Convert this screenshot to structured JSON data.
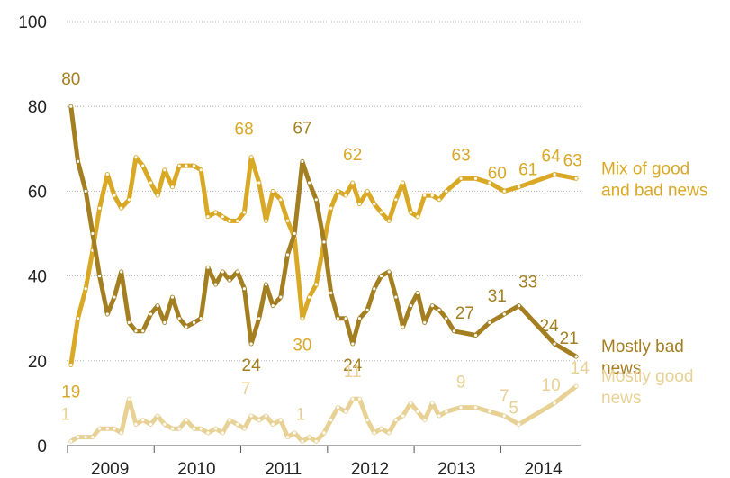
{
  "chart_data": {
    "type": "line",
    "title": "",
    "xlabel": "",
    "ylabel": "",
    "ylim": [
      0,
      100
    ],
    "yticks": [
      0,
      20,
      40,
      60,
      80,
      100
    ],
    "y_tick_labels": [
      "0",
      "20",
      "40",
      "60",
      "80",
      "100"
    ],
    "xlim": [
      2008.95,
      2014.88
    ],
    "x_tick_positions": [
      2009,
      2010,
      2011,
      2012,
      2013,
      2014
    ],
    "x_tick_labels": [
      "2009",
      "2010",
      "2011",
      "2012",
      "2013",
      "2014"
    ],
    "grid": "dotted horizontal lines at 20, 40, 60, 80, 100",
    "legend": "series labels at right end of each line",
    "series": [
      {
        "name": "Mix of good and bad news",
        "color": "#D9A824",
        "label_lines": [
          "Mix of good",
          "and bad news"
        ],
        "points": [
          [
            2009.0,
            19
          ],
          [
            2009.08,
            30
          ],
          [
            2009.17,
            37
          ],
          [
            2009.25,
            46
          ],
          [
            2009.33,
            56
          ],
          [
            2009.42,
            64
          ],
          [
            2009.5,
            59
          ],
          [
            2009.58,
            56
          ],
          [
            2009.67,
            58
          ],
          [
            2009.75,
            68
          ],
          [
            2009.83,
            66
          ],
          [
            2009.92,
            62
          ],
          [
            2010.0,
            59
          ],
          [
            2010.08,
            65
          ],
          [
            2010.17,
            61
          ],
          [
            2010.25,
            66
          ],
          [
            2010.33,
            66
          ],
          [
            2010.42,
            66
          ],
          [
            2010.5,
            65
          ],
          [
            2010.58,
            54
          ],
          [
            2010.67,
            55
          ],
          [
            2010.75,
            54
          ],
          [
            2010.83,
            53
          ],
          [
            2010.92,
            53
          ],
          [
            2011.0,
            55
          ],
          [
            2011.08,
            68
          ],
          [
            2011.17,
            62
          ],
          [
            2011.25,
            53
          ],
          [
            2011.33,
            60
          ],
          [
            2011.42,
            58
          ],
          [
            2011.5,
            53
          ],
          [
            2011.58,
            49
          ],
          [
            2011.67,
            30
          ],
          [
            2011.75,
            35
          ],
          [
            2011.83,
            38
          ],
          [
            2011.92,
            48
          ],
          [
            2012.0,
            56
          ],
          [
            2012.08,
            60
          ],
          [
            2012.17,
            59
          ],
          [
            2012.25,
            62
          ],
          [
            2012.33,
            57
          ],
          [
            2012.42,
            60
          ],
          [
            2012.5,
            57
          ],
          [
            2012.58,
            55
          ],
          [
            2012.67,
            53
          ],
          [
            2012.75,
            58
          ],
          [
            2012.83,
            62
          ],
          [
            2012.92,
            55
          ],
          [
            2013.0,
            54
          ],
          [
            2013.08,
            59
          ],
          [
            2013.17,
            59
          ],
          [
            2013.25,
            58
          ],
          [
            2013.33,
            60
          ],
          [
            2013.5,
            63
          ],
          [
            2013.67,
            63
          ],
          [
            2013.83,
            62
          ],
          [
            2014.0,
            60
          ],
          [
            2014.17,
            61
          ],
          [
            2014.58,
            64
          ],
          [
            2014.83,
            63
          ]
        ],
        "data_labels": [
          {
            "x": 2009.0,
            "text": "19",
            "dx": 0,
            "dy": 36
          },
          {
            "x": 2011.08,
            "text": "68",
            "dx": -8,
            "dy": -25
          },
          {
            "x": 2011.67,
            "text": "30",
            "dx": 0,
            "dy": 36
          },
          {
            "x": 2012.25,
            "text": "62",
            "dx": 0,
            "dy": -25
          },
          {
            "x": 2013.5,
            "text": "63",
            "dx": 0,
            "dy": -20
          },
          {
            "x": 2014.0,
            "text": "60",
            "dx": -8,
            "dy": -14
          },
          {
            "x": 2014.17,
            "text": "61",
            "dx": 10,
            "dy": -13
          },
          {
            "x": 2014.58,
            "text": "64",
            "dx": -4,
            "dy": -14
          },
          {
            "x": 2014.83,
            "text": "63",
            "dx": -4,
            "dy": -14
          }
        ]
      },
      {
        "name": "Mostly bad news",
        "color": "#A37F21",
        "label_lines": [
          "Mostly bad",
          "news"
        ],
        "points": [
          [
            2009.0,
            80
          ],
          [
            2009.08,
            67
          ],
          [
            2009.17,
            60
          ],
          [
            2009.25,
            50
          ],
          [
            2009.33,
            40
          ],
          [
            2009.42,
            31
          ],
          [
            2009.5,
            35
          ],
          [
            2009.58,
            41
          ],
          [
            2009.67,
            29
          ],
          [
            2009.75,
            27
          ],
          [
            2009.83,
            27
          ],
          [
            2009.92,
            31
          ],
          [
            2010.0,
            33
          ],
          [
            2010.08,
            29
          ],
          [
            2010.17,
            35
          ],
          [
            2010.25,
            30
          ],
          [
            2010.33,
            28
          ],
          [
            2010.42,
            29
          ],
          [
            2010.5,
            30
          ],
          [
            2010.58,
            42
          ],
          [
            2010.67,
            38
          ],
          [
            2010.75,
            41
          ],
          [
            2010.83,
            39
          ],
          [
            2010.92,
            41
          ],
          [
            2011.0,
            37
          ],
          [
            2011.08,
            24
          ],
          [
            2011.17,
            30
          ],
          [
            2011.25,
            38
          ],
          [
            2011.33,
            33
          ],
          [
            2011.42,
            35
          ],
          [
            2011.5,
            45
          ],
          [
            2011.58,
            50
          ],
          [
            2011.67,
            67
          ],
          [
            2011.75,
            62
          ],
          [
            2011.83,
            58
          ],
          [
            2011.92,
            48
          ],
          [
            2012.0,
            36
          ],
          [
            2012.08,
            30
          ],
          [
            2012.17,
            30
          ],
          [
            2012.25,
            24
          ],
          [
            2012.33,
            30
          ],
          [
            2012.42,
            32
          ],
          [
            2012.5,
            37
          ],
          [
            2012.58,
            40
          ],
          [
            2012.67,
            41
          ],
          [
            2012.75,
            35
          ],
          [
            2012.83,
            28
          ],
          [
            2012.92,
            33
          ],
          [
            2013.0,
            36
          ],
          [
            2013.08,
            29
          ],
          [
            2013.17,
            33
          ],
          [
            2013.25,
            32
          ],
          [
            2013.33,
            30
          ],
          [
            2013.42,
            27
          ],
          [
            2013.67,
            26
          ],
          [
            2013.83,
            29
          ],
          [
            2014.0,
            31
          ],
          [
            2014.17,
            33
          ],
          [
            2014.58,
            24
          ],
          [
            2014.83,
            21
          ]
        ],
        "data_labels": [
          {
            "x": 2009.0,
            "text": "80",
            "dx": 0,
            "dy": -24
          },
          {
            "x": 2011.08,
            "text": "24",
            "dx": 0,
            "dy": 30
          },
          {
            "x": 2011.67,
            "text": "67",
            "dx": 0,
            "dy": -31
          },
          {
            "x": 2012.25,
            "text": "24",
            "dx": 0,
            "dy": 30
          },
          {
            "x": 2013.42,
            "text": "27",
            "dx": 12,
            "dy": -14
          },
          {
            "x": 2014.0,
            "text": "31",
            "dx": -8,
            "dy": -14
          },
          {
            "x": 2014.17,
            "text": "33",
            "dx": 10,
            "dy": -20
          },
          {
            "x": 2014.58,
            "text": "24",
            "dx": -6,
            "dy": -14
          },
          {
            "x": 2014.83,
            "text": "21",
            "dx": -8,
            "dy": -14
          }
        ]
      },
      {
        "name": "Mostly good news",
        "color": "#E8D195",
        "label_lines": [
          "Mostly good",
          "news"
        ],
        "points": [
          [
            2009.0,
            1
          ],
          [
            2009.08,
            2
          ],
          [
            2009.17,
            2
          ],
          [
            2009.25,
            2
          ],
          [
            2009.33,
            4
          ],
          [
            2009.42,
            4
          ],
          [
            2009.5,
            4
          ],
          [
            2009.58,
            3
          ],
          [
            2009.67,
            11
          ],
          [
            2009.75,
            5
          ],
          [
            2009.83,
            6
          ],
          [
            2009.92,
            5
          ],
          [
            2010.0,
            7
          ],
          [
            2010.08,
            5
          ],
          [
            2010.17,
            4
          ],
          [
            2010.25,
            4
          ],
          [
            2010.33,
            6
          ],
          [
            2010.42,
            4
          ],
          [
            2010.5,
            4
          ],
          [
            2010.58,
            3
          ],
          [
            2010.67,
            4
          ],
          [
            2010.75,
            3
          ],
          [
            2010.83,
            6
          ],
          [
            2010.92,
            5
          ],
          [
            2011.0,
            4
          ],
          [
            2011.08,
            7
          ],
          [
            2011.17,
            6
          ],
          [
            2011.25,
            7
          ],
          [
            2011.33,
            5
          ],
          [
            2011.42,
            6
          ],
          [
            2011.5,
            2
          ],
          [
            2011.58,
            3
          ],
          [
            2011.67,
            1
          ],
          [
            2011.75,
            2
          ],
          [
            2011.83,
            1
          ],
          [
            2011.92,
            3
          ],
          [
            2012.0,
            6
          ],
          [
            2012.08,
            9
          ],
          [
            2012.17,
            8
          ],
          [
            2012.25,
            11
          ],
          [
            2012.33,
            11
          ],
          [
            2012.42,
            6
          ],
          [
            2012.5,
            3
          ],
          [
            2012.58,
            4
          ],
          [
            2012.67,
            3
          ],
          [
            2012.75,
            6
          ],
          [
            2012.83,
            7
          ],
          [
            2012.92,
            10
          ],
          [
            2013.0,
            8
          ],
          [
            2013.08,
            6
          ],
          [
            2013.17,
            10
          ],
          [
            2013.25,
            7
          ],
          [
            2013.33,
            8
          ],
          [
            2013.5,
            9
          ],
          [
            2013.67,
            9
          ],
          [
            2013.83,
            8
          ],
          [
            2014.0,
            7
          ],
          [
            2014.17,
            5
          ],
          [
            2014.58,
            10
          ],
          [
            2014.83,
            14
          ]
        ],
        "data_labels": [
          {
            "x": 2009.0,
            "text": "1",
            "dx": -6,
            "dy": -24
          },
          {
            "x": 2011.08,
            "text": "7",
            "dx": -6,
            "dy": -24
          },
          {
            "x": 2011.67,
            "text": "1",
            "dx": -2,
            "dy": -24
          },
          {
            "x": 2012.25,
            "text": "11",
            "dx": 0,
            "dy": -24
          },
          {
            "x": 2013.5,
            "text": "9",
            "dx": 0,
            "dy": -22
          },
          {
            "x": 2014.0,
            "text": "7",
            "dx": 0,
            "dy": -16
          },
          {
            "x": 2014.17,
            "text": "5",
            "dx": -6,
            "dy": -12
          },
          {
            "x": 2014.58,
            "text": "10",
            "dx": -4,
            "dy": -14
          },
          {
            "x": 2014.83,
            "text": "14",
            "dx": 4,
            "dy": -14
          }
        ]
      }
    ]
  }
}
